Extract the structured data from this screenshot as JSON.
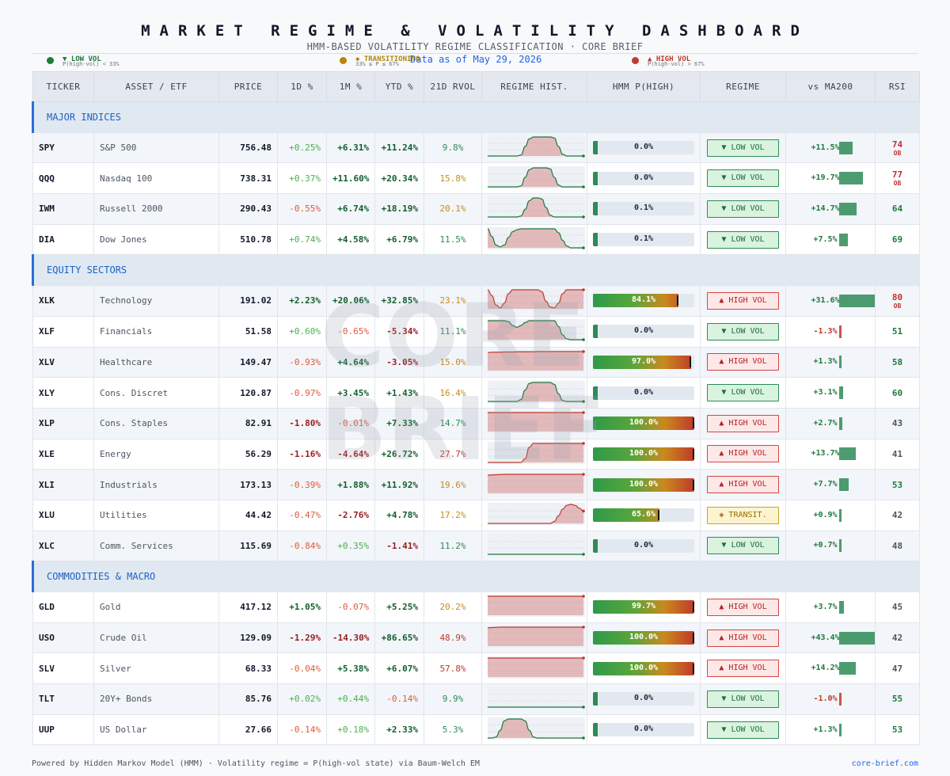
{
  "header": {
    "title": "MARKET REGIME & VOLATILITY DASHBOARD",
    "subtitle": "HMM-BASED VOLATILITY REGIME CLASSIFICATION   ·   CORE BRIEF",
    "as_of": "Data as of  May 29, 2026"
  },
  "legend": [
    {
      "label": "▼ LOW VOL",
      "sub": "P(high-vol) < 33%",
      "color": "#1e7a3c"
    },
    {
      "label": "◆ TRANSITIONING",
      "sub": "33% ≤ P ≤ 67%",
      "color": "#b7860b"
    },
    {
      "label": "▲ HIGH VOL",
      "sub": "P(high-vol) > 67%",
      "color": "#c0392b"
    }
  ],
  "columns": [
    "TICKER",
    "ASSET / ETF",
    "PRICE",
    "1D %",
    "1M %",
    "YTD %",
    "21D RVOL",
    "REGIME HIST.",
    "HMM  P(HIGH)",
    "REGIME",
    "vs MA200",
    "RSI"
  ],
  "colors": {
    "low": "#1e7a3c",
    "high": "#c0392b",
    "trans": "#b7860b",
    "accent": "#2a6fd6"
  },
  "regime_labels": {
    "low": "▼ LOW VOL",
    "high": "▲ HIGH VOL",
    "trans": "◈ TRANSIT."
  },
  "chart_data": {
    "type": "table",
    "sections": [
      {
        "name": "MAJOR INDICES",
        "rows": [
          {
            "ticker": "SPY",
            "asset": "S&P 500",
            "price": "756.48",
            "d1": "+0.25%",
            "m1": "+6.31%",
            "ytd": "+11.24%",
            "rvol": "9.8%",
            "p_high": 0.0,
            "p_label": "0.0%",
            "regime": "low",
            "ma200": "+11.5%",
            "ma200_val": 11.5,
            "rsi": "74",
            "ob": "OB",
            "hist": [
              0,
              0,
              0,
              0,
              0,
              0,
              0,
              0,
              0.05,
              0.5,
              0.9,
              1,
              1,
              1,
              1,
              1,
              0.95,
              0.5,
              0.1,
              0,
              0,
              0,
              0,
              0
            ]
          },
          {
            "ticker": "QQQ",
            "asset": "Nasdaq 100",
            "price": "738.31",
            "d1": "+0.37%",
            "m1": "+11.60%",
            "ytd": "+20.34%",
            "rvol": "15.8%",
            "p_high": 0.0,
            "p_label": "0.0%",
            "regime": "low",
            "ma200": "+19.7%",
            "ma200_val": 19.7,
            "rsi": "77",
            "ob": "OB",
            "hist": [
              0,
              0,
              0,
              0,
              0,
              0,
              0,
              0,
              0.05,
              0.5,
              0.9,
              1,
              1,
              1,
              1,
              0.95,
              0.5,
              0.1,
              0,
              0,
              0,
              0,
              0,
              0
            ]
          },
          {
            "ticker": "IWM",
            "asset": "Russell 2000",
            "price": "290.43",
            "d1": "-0.55%",
            "m1": "+6.74%",
            "ytd": "+18.19%",
            "rvol": "20.1%",
            "p_high": 0.001,
            "p_label": "0.1%",
            "regime": "low",
            "ma200": "+14.7%",
            "ma200_val": 14.7,
            "rsi": "64",
            "ob": "",
            "hist": [
              0,
              0,
              0,
              0,
              0,
              0,
              0,
              0,
              0.05,
              0.4,
              0.85,
              1,
              1,
              0.95,
              0.5,
              0.1,
              0,
              0,
              0,
              0,
              0,
              0,
              0,
              0
            ]
          },
          {
            "ticker": "DIA",
            "asset": "Dow Jones",
            "price": "510.78",
            "d1": "+0.74%",
            "m1": "+4.58%",
            "ytd": "+6.79%",
            "rvol": "11.5%",
            "p_high": 0.001,
            "p_label": "0.1%",
            "regime": "low",
            "ma200": "+7.5%",
            "ma200_val": 7.5,
            "rsi": "69",
            "ob": "",
            "hist": [
              1,
              0.6,
              0.15,
              0.05,
              0.15,
              0.55,
              0.85,
              0.95,
              1,
              1,
              1,
              1,
              1,
              1,
              1,
              1,
              1,
              0.8,
              0.4,
              0.1,
              0,
              0,
              0,
              0
            ]
          }
        ]
      },
      {
        "name": "EQUITY SECTORS",
        "rows": [
          {
            "ticker": "XLK",
            "asset": "Technology",
            "price": "191.02",
            "d1": "+2.23%",
            "m1": "+20.06%",
            "ytd": "+32.85%",
            "rvol": "23.1%",
            "p_high": 0.841,
            "p_label": "84.1%",
            "regime": "high",
            "ma200": "+31.6%",
            "ma200_val": 31.6,
            "rsi": "80",
            "ob": "OB",
            "hist": [
              1,
              0.7,
              0.2,
              0.05,
              0.3,
              0.8,
              1,
              1,
              1,
              1,
              1,
              1,
              1,
              0.9,
              0.4,
              0.1,
              0.05,
              0.3,
              0.8,
              1,
              1,
              1,
              1,
              1
            ]
          },
          {
            "ticker": "XLF",
            "asset": "Financials",
            "price": "51.58",
            "d1": "+0.60%",
            "m1": "-0.65%",
            "ytd": "-5.34%",
            "rvol": "11.1%",
            "p_high": 0.0,
            "p_label": "0.0%",
            "regime": "low",
            "ma200": "-1.3%",
            "ma200_val": -1.3,
            "rsi": "51",
            "ob": "",
            "hist": [
              1,
              1,
              1,
              1,
              1,
              0.95,
              0.75,
              0.65,
              0.75,
              0.9,
              1,
              1,
              1,
              1,
              1,
              1,
              1,
              0.7,
              0.25,
              0.05,
              0,
              0,
              0,
              0
            ]
          },
          {
            "ticker": "XLV",
            "asset": "Healthcare",
            "price": "149.47",
            "d1": "-0.93%",
            "m1": "+4.64%",
            "ytd": "-3.05%",
            "rvol": "15.0%",
            "p_high": 0.97,
            "p_label": "97.0%",
            "regime": "high",
            "ma200": "+1.3%",
            "ma200_val": 1.3,
            "rsi": "58",
            "ob": "",
            "hist": [
              0.95,
              0.96,
              0.97,
              0.97,
              0.98,
              0.98,
              0.98,
              0.99,
              0.99,
              0.99,
              0.99,
              0.99,
              1,
              1,
              1,
              1,
              1,
              1,
              1,
              1,
              1,
              1,
              1,
              1
            ]
          },
          {
            "ticker": "XLY",
            "asset": "Cons. Discret",
            "price": "120.87",
            "d1": "-0.97%",
            "m1": "+3.45%",
            "ytd": "+1.43%",
            "rvol": "16.4%",
            "p_high": 0.0,
            "p_label": "0.0%",
            "regime": "low",
            "ma200": "+3.1%",
            "ma200_val": 3.1,
            "rsi": "60",
            "ob": "",
            "hist": [
              0,
              0,
              0,
              0,
              0,
              0,
              0,
              0,
              0.1,
              0.6,
              0.95,
              1,
              1,
              1,
              1,
              1,
              0.9,
              0.4,
              0.05,
              0,
              0,
              0,
              0,
              0
            ]
          },
          {
            "ticker": "XLP",
            "asset": "Cons. Staples",
            "price": "82.91",
            "d1": "-1.80%",
            "m1": "-0.01%",
            "ytd": "+7.33%",
            "rvol": "14.7%",
            "p_high": 1.0,
            "p_label": "100.0%",
            "regime": "high",
            "ma200": "+2.7%",
            "ma200_val": 2.7,
            "rsi": "43",
            "ob": "",
            "hist": [
              1,
              1,
              1,
              1,
              1,
              1,
              1,
              1,
              1,
              1,
              1,
              1,
              1,
              1,
              1,
              1,
              1,
              1,
              1,
              1,
              1,
              1,
              1,
              1
            ]
          },
          {
            "ticker": "XLE",
            "asset": "Energy",
            "price": "56.29",
            "d1": "-1.16%",
            "m1": "-4.64%",
            "ytd": "+26.72%",
            "rvol": "27.7%",
            "p_high": 1.0,
            "p_label": "100.0%",
            "regime": "high",
            "ma200": "+13.7%",
            "ma200_val": 13.7,
            "rsi": "41",
            "ob": "",
            "hist": [
              0,
              0,
              0,
              0,
              0,
              0,
              0,
              0,
              0,
              0.2,
              0.8,
              1,
              1,
              1,
              1,
              1,
              1,
              1,
              1,
              1,
              1,
              1,
              1,
              1
            ]
          },
          {
            "ticker": "XLI",
            "asset": "Industrials",
            "price": "173.13",
            "d1": "-0.39%",
            "m1": "+1.88%",
            "ytd": "+11.92%",
            "rvol": "19.6%",
            "p_high": 1.0,
            "p_label": "100.0%",
            "regime": "high",
            "ma200": "+7.7%",
            "ma200_val": 7.7,
            "rsi": "53",
            "ob": "",
            "hist": [
              0.96,
              0.97,
              0.98,
              0.99,
              1,
              1,
              1,
              1,
              1,
              1,
              1,
              1,
              1,
              1,
              1,
              1,
              1,
              1,
              1,
              1,
              1,
              1,
              1,
              1
            ]
          },
          {
            "ticker": "XLU",
            "asset": "Utilities",
            "price": "44.42",
            "d1": "-0.47%",
            "m1": "-2.76%",
            "ytd": "+4.78%",
            "rvol": "17.2%",
            "p_high": 0.656,
            "p_label": "65.6%",
            "regime": "trans",
            "ma200": "+0.9%",
            "ma200_val": 0.9,
            "rsi": "42",
            "ob": "",
            "hist": [
              0,
              0,
              0,
              0,
              0,
              0,
              0,
              0,
              0,
              0,
              0,
              0,
              0,
              0,
              0,
              0,
              0.1,
              0.4,
              0.75,
              0.95,
              1,
              0.95,
              0.8,
              0.65
            ]
          },
          {
            "ticker": "XLC",
            "asset": "Comm. Services",
            "price": "115.69",
            "d1": "-0.84%",
            "m1": "+0.35%",
            "ytd": "-1.41%",
            "rvol": "11.2%",
            "p_high": 0.0,
            "p_label": "0.0%",
            "regime": "low",
            "ma200": "+0.7%",
            "ma200_val": 0.7,
            "rsi": "48",
            "ob": "",
            "hist": [
              0,
              0,
              0,
              0,
              0,
              0,
              0,
              0,
              0,
              0,
              0,
              0,
              0,
              0,
              0,
              0,
              0,
              0,
              0,
              0,
              0,
              0,
              0,
              0
            ]
          }
        ]
      },
      {
        "name": "COMMODITIES & MACRO",
        "rows": [
          {
            "ticker": "GLD",
            "asset": "Gold",
            "price": "417.12",
            "d1": "+1.05%",
            "m1": "-0.07%",
            "ytd": "+5.25%",
            "rvol": "20.2%",
            "p_high": 0.997,
            "p_label": "99.7%",
            "regime": "high",
            "ma200": "+3.7%",
            "ma200_val": 3.7,
            "rsi": "45",
            "ob": "",
            "hist": [
              1,
              1,
              1,
              1,
              1,
              1,
              1,
              1,
              1,
              1,
              1,
              1,
              1,
              1,
              1,
              1,
              1,
              1,
              1,
              1,
              1,
              1,
              1,
              1
            ]
          },
          {
            "ticker": "USO",
            "asset": "Crude Oil",
            "price": "129.09",
            "d1": "-1.29%",
            "m1": "-14.30%",
            "ytd": "+86.65%",
            "rvol": "48.9%",
            "p_high": 1.0,
            "p_label": "100.0%",
            "regime": "high",
            "ma200": "+43.4%",
            "ma200_val": 43.4,
            "rsi": "42",
            "ob": "",
            "hist": [
              0.97,
              0.98,
              0.99,
              1,
              1,
              1,
              1,
              1,
              1,
              1,
              1,
              1,
              1,
              1,
              1,
              1,
              1,
              1,
              1,
              1,
              1,
              1,
              1,
              1
            ]
          },
          {
            "ticker": "SLV",
            "asset": "Silver",
            "price": "68.33",
            "d1": "-0.04%",
            "m1": "+5.38%",
            "ytd": "+6.07%",
            "rvol": "57.8%",
            "p_high": 1.0,
            "p_label": "100.0%",
            "regime": "high",
            "ma200": "+14.2%",
            "ma200_val": 14.2,
            "rsi": "47",
            "ob": "",
            "hist": [
              1,
              1,
              1,
              1,
              1,
              1,
              1,
              1,
              1,
              1,
              1,
              1,
              1,
              1,
              1,
              1,
              1,
              1,
              1,
              1,
              1,
              1,
              1,
              1
            ]
          },
          {
            "ticker": "TLT",
            "asset": "20Y+ Bonds",
            "price": "85.76",
            "d1": "+0.02%",
            "m1": "+0.44%",
            "ytd": "-0.14%",
            "rvol": "9.9%",
            "p_high": 0.0,
            "p_label": "0.0%",
            "regime": "low",
            "ma200": "-1.0%",
            "ma200_val": -1.0,
            "rsi": "55",
            "ob": "",
            "hist": [
              0,
              0,
              0,
              0,
              0,
              0,
              0,
              0,
              0,
              0,
              0,
              0,
              0,
              0,
              0,
              0,
              0,
              0,
              0,
              0,
              0,
              0,
              0,
              0
            ]
          },
          {
            "ticker": "UUP",
            "asset": "US Dollar",
            "price": "27.66",
            "d1": "-0.14%",
            "m1": "+0.18%",
            "ytd": "+2.33%",
            "rvol": "5.3%",
            "p_high": 0.0,
            "p_label": "0.0%",
            "regime": "low",
            "ma200": "+1.3%",
            "ma200_val": 1.3,
            "rsi": "53",
            "ob": "",
            "hist": [
              0,
              0,
              0.05,
              0.4,
              0.9,
              1,
              1,
              1,
              1,
              0.9,
              0.4,
              0.05,
              0,
              0,
              0,
              0,
              0,
              0,
              0,
              0,
              0,
              0,
              0,
              0
            ]
          }
        ]
      }
    ]
  },
  "watermark": [
    "CORE",
    "BRIEF"
  ],
  "footer": {
    "left": "Powered by Hidden Markov Model (HMM) · Volatility regime = P(high-vol state) via Baum-Welch EM",
    "right": "core-brief.com"
  }
}
